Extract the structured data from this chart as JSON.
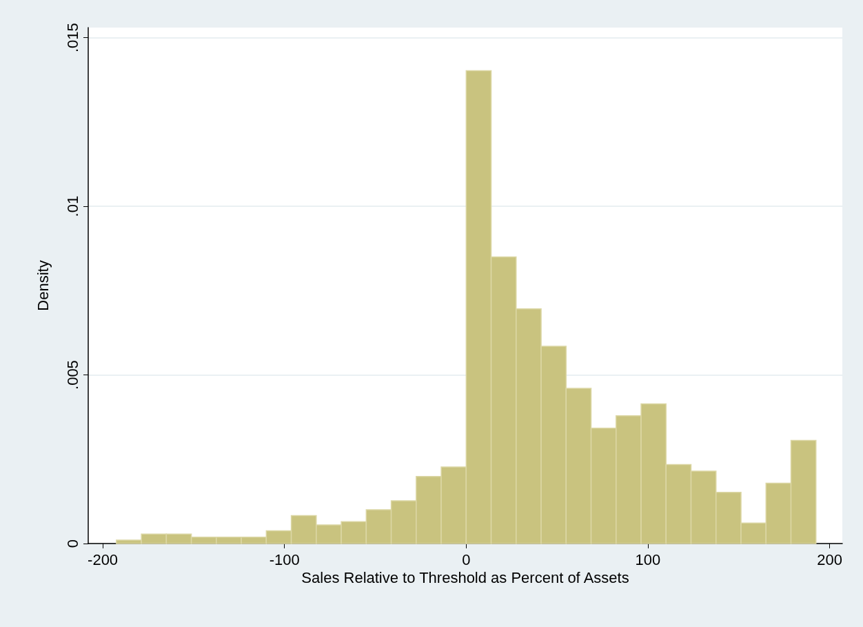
{
  "chart_data": {
    "type": "histogram",
    "xlabel": "Sales Relative to Threshold as Percent of Assets",
    "ylabel": "Density",
    "bins": [
      -192.5,
      -178.75,
      -165,
      -151.25,
      -137.5,
      -123.75,
      -110,
      -96.25,
      -82.5,
      -68.75,
      -55,
      -41.25,
      -27.5,
      -13.75,
      0,
      13.75,
      27.5,
      41.25,
      55,
      68.75,
      82.5,
      96.25,
      110,
      123.75,
      137.5,
      151.25,
      165,
      178.75,
      192.5
    ],
    "values": [
      0.0001,
      0.00028,
      0.00028,
      0.00019,
      0.00019,
      0.00019,
      0.00038,
      0.00083,
      0.00055,
      0.00065,
      0.001,
      0.00127,
      0.00199,
      0.00227,
      0.01402,
      0.0085,
      0.00696,
      0.00585,
      0.0046,
      0.00342,
      0.00379,
      0.00414,
      0.00234,
      0.00215,
      0.00152,
      0.00061,
      0.00179,
      0.00306
    ],
    "color": "#c9c37f",
    "xlim": [
      -208,
      207
    ],
    "xticks": [
      -200,
      -100,
      0,
      100,
      200
    ],
    "ylim": [
      0,
      0.0153
    ],
    "yticks": [
      {
        "value": 0,
        "label": "0"
      },
      {
        "value": 0.005,
        "label": ".005"
      },
      {
        "value": 0.01,
        "label": ".01"
      },
      {
        "value": 0.015,
        "label": ".015"
      }
    ],
    "grid": "y"
  }
}
